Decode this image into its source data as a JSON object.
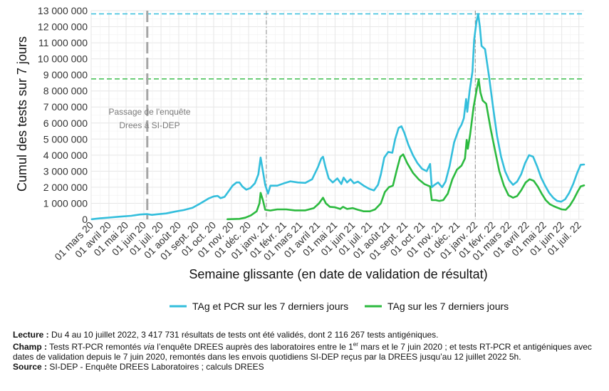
{
  "chart_data": {
    "type": "line",
    "title": "",
    "xlabel": "Semaine glissante (en date de validation de résultat)",
    "ylabel": "Cumul des tests sur 7 jours",
    "ylim": [
      0,
      13000000
    ],
    "xlim": [
      "2020-03-01",
      "2022-07-10"
    ],
    "grid": true,
    "legend_position": "bottom",
    "y_ticks": [
      0,
      1000000,
      2000000,
      3000000,
      4000000,
      5000000,
      6000000,
      7000000,
      8000000,
      9000000,
      10000000,
      11000000,
      12000000,
      13000000
    ],
    "y_tick_labels": [
      "0",
      "1 000 000",
      "2 000 000",
      "3 000 000",
      "4 000 000",
      "5 000 000",
      "6 000 000",
      "7 000 000",
      "8 000 000",
      "9 000 000",
      "10 000 000",
      "11 000 000",
      "12 000 000",
      "13 000 000"
    ],
    "x_ticks": [
      "2020-03-01",
      "2020-04-01",
      "2020-05-01",
      "2020-06-01",
      "2020-07-01",
      "2020-08-01",
      "2020-09-01",
      "2020-10-01",
      "2020-11-01",
      "2020-12-01",
      "2021-01-01",
      "2021-02-01",
      "2021-03-01",
      "2021-04-01",
      "2021-05-01",
      "2021-06-01",
      "2021-07-01",
      "2021-08-01",
      "2021-09-01",
      "2021-10-01",
      "2021-11-01",
      "2021-12-01",
      "2022-01-01",
      "2022-02-01",
      "2022-03-01",
      "2022-04-01",
      "2022-05-01",
      "2022-06-01",
      "2022-07-01"
    ],
    "x_tick_labels": [
      "01 mars 20",
      "01 avril 20",
      "01 mai 20",
      "01 juin 20",
      "01 juil. 20",
      "01 août 20",
      "01 sept. 20",
      "01 oct. 20",
      "01 nov. 20",
      "01 déc. 20",
      "01 janv. 21",
      "01 févr. 21",
      "01 mars 21",
      "01 avril 21",
      "01 mai 21",
      "01 juin 21",
      "01 juil. 21",
      "01 août 21",
      "01 sept. 21",
      "01 oct. 21",
      "01 nov. 21",
      "01 déc. 21",
      "01 janv. 22",
      "01 févr. 22",
      "01 mars 22",
      "01 avril 22",
      "01 mai 22",
      "01 juin 22",
      "01 juil. 22"
    ],
    "series": [
      {
        "name": "TAg et PCR sur les 7 derniers jours",
        "color": "#33bedc",
        "points": [
          [
            "2020-03-02",
            10000
          ],
          [
            "2020-03-16",
            60000
          ],
          [
            "2020-04-01",
            110000
          ],
          [
            "2020-04-20",
            170000
          ],
          [
            "2020-05-10",
            220000
          ],
          [
            "2020-05-25",
            300000
          ],
          [
            "2020-06-07",
            330000
          ],
          [
            "2020-06-15",
            280000
          ],
          [
            "2020-06-25",
            320000
          ],
          [
            "2020-07-10",
            370000
          ],
          [
            "2020-07-25",
            480000
          ],
          [
            "2020-08-10",
            580000
          ],
          [
            "2020-08-25",
            720000
          ],
          [
            "2020-09-08",
            1000000
          ],
          [
            "2020-09-22",
            1300000
          ],
          [
            "2020-10-01",
            1430000
          ],
          [
            "2020-10-08",
            1460000
          ],
          [
            "2020-10-13",
            1320000
          ],
          [
            "2020-10-20",
            1400000
          ],
          [
            "2020-10-27",
            1750000
          ],
          [
            "2020-11-03",
            2100000
          ],
          [
            "2020-11-10",
            2300000
          ],
          [
            "2020-11-15",
            2300000
          ],
          [
            "2020-11-20",
            2050000
          ],
          [
            "2020-11-27",
            1850000
          ],
          [
            "2020-12-04",
            1950000
          ],
          [
            "2020-12-12",
            2250000
          ],
          [
            "2020-12-18",
            2800000
          ],
          [
            "2020-12-22",
            3850000
          ],
          [
            "2020-12-26",
            3000000
          ],
          [
            "2020-12-30",
            2150000
          ],
          [
            "2021-01-04",
            1600000
          ],
          [
            "2021-01-08",
            2100000
          ],
          [
            "2021-01-20",
            2100000
          ],
          [
            "2021-02-01",
            2250000
          ],
          [
            "2021-02-12",
            2370000
          ],
          [
            "2021-02-25",
            2300000
          ],
          [
            "2021-03-10",
            2270000
          ],
          [
            "2021-03-22",
            2500000
          ],
          [
            "2021-04-01",
            3250000
          ],
          [
            "2021-04-07",
            3800000
          ],
          [
            "2021-04-10",
            3900000
          ],
          [
            "2021-04-14",
            3300000
          ],
          [
            "2021-04-20",
            2550000
          ],
          [
            "2021-04-27",
            2300000
          ],
          [
            "2021-05-05",
            2550000
          ],
          [
            "2021-05-12",
            2200000
          ],
          [
            "2021-05-16",
            2600000
          ],
          [
            "2021-05-22",
            2300000
          ],
          [
            "2021-05-28",
            2500000
          ],
          [
            "2021-06-03",
            2250000
          ],
          [
            "2021-06-10",
            2350000
          ],
          [
            "2021-06-20",
            2100000
          ],
          [
            "2021-06-30",
            1900000
          ],
          [
            "2021-07-08",
            1800000
          ],
          [
            "2021-07-15",
            2150000
          ],
          [
            "2021-07-20",
            2800000
          ],
          [
            "2021-07-26",
            3850000
          ],
          [
            "2021-08-02",
            4200000
          ],
          [
            "2021-08-09",
            4150000
          ],
          [
            "2021-08-14",
            5000000
          ],
          [
            "2021-08-20",
            5700000
          ],
          [
            "2021-08-25",
            5800000
          ],
          [
            "2021-08-30",
            5400000
          ],
          [
            "2021-09-06",
            4650000
          ],
          [
            "2021-09-14",
            4000000
          ],
          [
            "2021-09-22",
            3500000
          ],
          [
            "2021-09-30",
            3150000
          ],
          [
            "2021-10-08",
            3000000
          ],
          [
            "2021-10-14",
            3450000
          ],
          [
            "2021-10-17",
            2000000
          ],
          [
            "2021-10-22",
            2150000
          ],
          [
            "2021-10-28",
            2300000
          ],
          [
            "2021-11-04",
            2000000
          ],
          [
            "2021-11-10",
            2350000
          ],
          [
            "2021-11-17",
            3300000
          ],
          [
            "2021-11-25",
            4800000
          ],
          [
            "2021-12-03",
            5600000
          ],
          [
            "2021-12-08",
            5900000
          ],
          [
            "2021-12-12",
            6300000
          ],
          [
            "2021-12-16",
            7500000
          ],
          [
            "2021-12-18",
            6700000
          ],
          [
            "2021-12-22",
            8000000
          ],
          [
            "2021-12-27",
            9200000
          ],
          [
            "2021-12-30",
            11200000
          ],
          [
            "2022-01-03",
            12300000
          ],
          [
            "2022-01-06",
            12800000
          ],
          [
            "2022-01-09",
            12000000
          ],
          [
            "2022-01-12",
            10800000
          ],
          [
            "2022-01-18",
            10600000
          ],
          [
            "2022-01-25",
            8900000
          ],
          [
            "2022-02-01",
            7000000
          ],
          [
            "2022-02-08",
            5200000
          ],
          [
            "2022-02-15",
            3900000
          ],
          [
            "2022-02-22",
            3000000
          ],
          [
            "2022-03-01",
            2450000
          ],
          [
            "2022-03-08",
            2150000
          ],
          [
            "2022-03-15",
            2350000
          ],
          [
            "2022-03-22",
            2800000
          ],
          [
            "2022-03-29",
            3500000
          ],
          [
            "2022-04-05",
            4000000
          ],
          [
            "2022-04-12",
            3900000
          ],
          [
            "2022-04-19",
            3300000
          ],
          [
            "2022-04-26",
            2600000
          ],
          [
            "2022-05-03",
            2100000
          ],
          [
            "2022-05-10",
            1650000
          ],
          [
            "2022-05-17",
            1350000
          ],
          [
            "2022-05-24",
            1150000
          ],
          [
            "2022-05-31",
            1100000
          ],
          [
            "2022-06-07",
            1250000
          ],
          [
            "2022-06-14",
            1650000
          ],
          [
            "2022-06-21",
            2200000
          ],
          [
            "2022-06-28",
            2900000
          ],
          [
            "2022-07-04",
            3400000
          ],
          [
            "2022-07-10",
            3417731
          ]
        ]
      },
      {
        "name": "TAg sur les 7 derniers jours",
        "color": "#2cba3f",
        "points": [
          [
            "2020-10-25",
            10000
          ],
          [
            "2020-11-15",
            30000
          ],
          [
            "2020-11-25",
            100000
          ],
          [
            "2020-12-05",
            250000
          ],
          [
            "2020-12-15",
            500000
          ],
          [
            "2020-12-20",
            1000000
          ],
          [
            "2020-12-22",
            1650000
          ],
          [
            "2020-12-26",
            1200000
          ],
          [
            "2020-12-30",
            600000
          ],
          [
            "2021-01-08",
            550000
          ],
          [
            "2021-01-20",
            620000
          ],
          [
            "2021-02-05",
            620000
          ],
          [
            "2021-02-20",
            560000
          ],
          [
            "2021-03-10",
            560000
          ],
          [
            "2021-03-25",
            700000
          ],
          [
            "2021-04-03",
            1000000
          ],
          [
            "2021-04-10",
            1350000
          ],
          [
            "2021-04-15",
            1000000
          ],
          [
            "2021-04-22",
            780000
          ],
          [
            "2021-05-01",
            750000
          ],
          [
            "2021-05-10",
            650000
          ],
          [
            "2021-05-15",
            780000
          ],
          [
            "2021-05-22",
            650000
          ],
          [
            "2021-06-01",
            700000
          ],
          [
            "2021-06-10",
            600000
          ],
          [
            "2021-06-20",
            500000
          ],
          [
            "2021-07-01",
            500000
          ],
          [
            "2021-07-10",
            620000
          ],
          [
            "2021-07-20",
            1000000
          ],
          [
            "2021-07-27",
            1700000
          ],
          [
            "2021-08-03",
            2000000
          ],
          [
            "2021-08-10",
            2100000
          ],
          [
            "2021-08-17",
            3100000
          ],
          [
            "2021-08-23",
            3900000
          ],
          [
            "2021-08-28",
            4050000
          ],
          [
            "2021-09-04",
            3500000
          ],
          [
            "2021-09-14",
            2900000
          ],
          [
            "2021-09-24",
            2500000
          ],
          [
            "2021-10-04",
            2200000
          ],
          [
            "2021-10-14",
            2050000
          ],
          [
            "2021-10-17",
            1200000
          ],
          [
            "2021-10-24",
            1200000
          ],
          [
            "2021-10-30",
            1150000
          ],
          [
            "2021-11-06",
            1200000
          ],
          [
            "2021-11-14",
            1600000
          ],
          [
            "2021-11-22",
            2500000
          ],
          [
            "2021-11-30",
            3100000
          ],
          [
            "2021-12-08",
            3350000
          ],
          [
            "2021-12-14",
            3800000
          ],
          [
            "2021-12-17",
            4950000
          ],
          [
            "2021-12-19",
            4400000
          ],
          [
            "2021-12-23",
            5300000
          ],
          [
            "2021-12-29",
            7000000
          ],
          [
            "2022-01-04",
            8200000
          ],
          [
            "2022-01-07",
            8700000
          ],
          [
            "2022-01-10",
            7900000
          ],
          [
            "2022-01-14",
            7400000
          ],
          [
            "2022-01-20",
            7200000
          ],
          [
            "2022-01-28",
            5600000
          ],
          [
            "2022-02-05",
            4200000
          ],
          [
            "2022-02-12",
            3000000
          ],
          [
            "2022-02-20",
            2100000
          ],
          [
            "2022-02-28",
            1500000
          ],
          [
            "2022-03-08",
            1350000
          ],
          [
            "2022-03-15",
            1450000
          ],
          [
            "2022-03-22",
            1800000
          ],
          [
            "2022-03-30",
            2300000
          ],
          [
            "2022-04-06",
            2500000
          ],
          [
            "2022-04-13",
            2400000
          ],
          [
            "2022-04-20",
            2050000
          ],
          [
            "2022-04-27",
            1600000
          ],
          [
            "2022-05-04",
            1200000
          ],
          [
            "2022-05-11",
            950000
          ],
          [
            "2022-05-18",
            820000
          ],
          [
            "2022-05-25",
            720000
          ],
          [
            "2022-06-01",
            620000
          ],
          [
            "2022-06-08",
            600000
          ],
          [
            "2022-06-15",
            850000
          ],
          [
            "2022-06-22",
            1250000
          ],
          [
            "2022-06-29",
            1750000
          ],
          [
            "2022-07-04",
            2050000
          ],
          [
            "2022-07-10",
            2116267
          ]
        ]
      }
    ],
    "reference_lines": [
      {
        "orientation": "horizontal",
        "y": 12800000,
        "color": "#33bedc",
        "style": "dashed"
      },
      {
        "orientation": "horizontal",
        "y": 8750000,
        "color": "#2cba3f",
        "style": "dashed"
      },
      {
        "orientation": "vertical",
        "x": "2020-06-07",
        "color": "#a6a6a6",
        "style": "long-dash"
      },
      {
        "orientation": "vertical",
        "x": "2021-01-01",
        "color": "#8c8c8c",
        "style": "dash-dot"
      },
      {
        "orientation": "vertical",
        "x": "2022-01-01",
        "color": "#8c8c8c",
        "style": "dash-dot"
      }
    ],
    "annotations": [
      {
        "line1": "Passage de l'enquête",
        "line2": "Drees à SI-DEP"
      }
    ]
  },
  "notes": {
    "lecture_label": "Lecture :",
    "lecture_text": " Du 4 au 10 juillet 2022, 3 417 731 résultats de tests ont été validés, dont 2 116 267 tests antigéniques.",
    "champ_label": "Champ :",
    "champ_text_1": " Tests RT-PCR remontés ",
    "champ_via": "via",
    "champ_text_2": " l’enquête DREES auprès des laboratoires entre le 1",
    "champ_sup": "er",
    "champ_text_3": " mars et le 7 juin 2020 ; et tests RT-PCR et antigéniques avec dates de validation depuis le 7 juin 2020, remontés dans les envois quotidiens SI-DEP reçus par la DREES jusqu’au 12 juillet 2022 5h.",
    "source_label": "Source :",
    "source_text": " SI-DEP - Enquête DREES Laboratoires ; calculs DREES"
  }
}
